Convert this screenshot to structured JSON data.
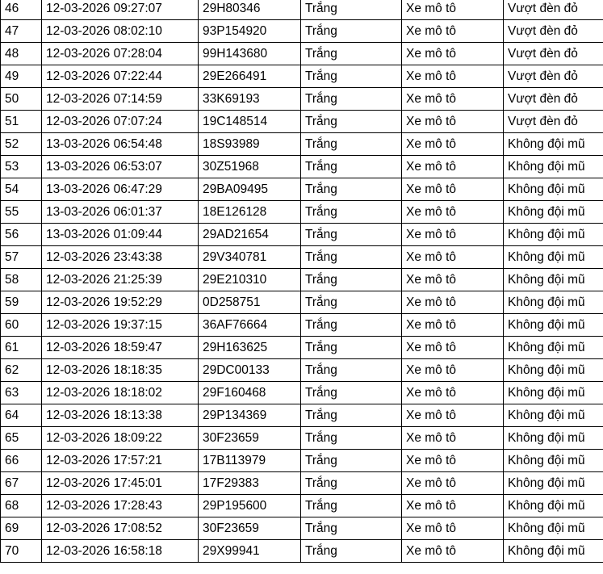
{
  "table": {
    "rows": [
      [
        "46",
        "12-03-2026 09:27:07",
        "29H80346",
        "Trắng",
        "Xe mô tô",
        "Vượt đèn đỏ"
      ],
      [
        "47",
        "12-03-2026 08:02:10",
        "93P154920",
        "Trắng",
        "Xe mô tô",
        "Vượt đèn đỏ"
      ],
      [
        "48",
        "12-03-2026 07:28:04",
        "99H143680",
        "Trắng",
        "Xe mô tô",
        "Vượt đèn đỏ"
      ],
      [
        "49",
        "12-03-2026 07:22:44",
        "29E266491",
        "Trắng",
        "Xe mô tô",
        "Vượt đèn đỏ"
      ],
      [
        "50",
        "12-03-2026 07:14:59",
        "33K69193",
        "Trắng",
        "Xe mô tô",
        "Vượt đèn đỏ"
      ],
      [
        "51",
        "12-03-2026 07:07:24",
        "19C148514",
        "Trắng",
        "Xe mô tô",
        "Vượt đèn đỏ"
      ],
      [
        "52",
        "13-03-2026 06:54:48",
        "18S93989",
        "Trắng",
        "Xe mô tô",
        "Không đội mũ"
      ],
      [
        "53",
        "13-03-2026 06:53:07",
        "30Z51968",
        "Trắng",
        "Xe mô tô",
        "Không đội mũ"
      ],
      [
        "54",
        "13-03-2026 06:47:29",
        "29BA09495",
        "Trắng",
        "Xe mô tô",
        "Không đội mũ"
      ],
      [
        "55",
        "13-03-2026 06:01:37",
        "18E126128",
        "Trắng",
        "Xe mô tô",
        "Không đội mũ"
      ],
      [
        "56",
        "13-03-2026 01:09:44",
        "29AD21654",
        "Trắng",
        "Xe mô tô",
        "Không đội mũ"
      ],
      [
        "57",
        "12-03-2026 23:43:38",
        "29V340781",
        "Trắng",
        "Xe mô tô",
        "Không đội mũ"
      ],
      [
        "58",
        "12-03-2026 21:25:39",
        "29E210310",
        "Trắng",
        "Xe mô tô",
        "Không đội mũ"
      ],
      [
        "59",
        "12-03-2026 19:52:29",
        "0D258751",
        "Trắng",
        "Xe mô tô",
        "Không đội mũ"
      ],
      [
        "60",
        "12-03-2026 19:37:15",
        "36AF76664",
        "Trắng",
        "Xe mô tô",
        "Không đội mũ"
      ],
      [
        "61",
        "12-03-2026 18:59:47",
        "29H163625",
        "Trắng",
        "Xe mô tô",
        "Không đội mũ"
      ],
      [
        "62",
        "12-03-2026 18:18:35",
        "29DC00133",
        "Trắng",
        "Xe mô tô",
        "Không đội mũ"
      ],
      [
        "63",
        "12-03-2026 18:18:02",
        "29F160468",
        "Trắng",
        "Xe mô tô",
        "Không đội mũ"
      ],
      [
        "64",
        "12-03-2026 18:13:38",
        "29P134369",
        "Trắng",
        "Xe mô tô",
        "Không đội mũ"
      ],
      [
        "65",
        "12-03-2026 18:09:22",
        "30F23659",
        "Trắng",
        "Xe mô tô",
        "Không đội mũ"
      ],
      [
        "66",
        "12-03-2026 17:57:21",
        "17B113979",
        "Trắng",
        "Xe mô tô",
        "Không đội mũ"
      ],
      [
        "67",
        "12-03-2026 17:45:01",
        "17F29383",
        "Trắng",
        "Xe mô tô",
        "Không đội mũ"
      ],
      [
        "68",
        "12-03-2026 17:28:43",
        "29P195600",
        "Trắng",
        "Xe mô tô",
        "Không đội mũ"
      ],
      [
        "69",
        "12-03-2026 17:08:52",
        "30F23659",
        "Trắng",
        "Xe mô tô",
        "Không đội mũ"
      ],
      [
        "70",
        "12-03-2026 16:58:18",
        "29X99941",
        "Trắng",
        "Xe mô tô",
        "Không đội mũ"
      ]
    ]
  }
}
